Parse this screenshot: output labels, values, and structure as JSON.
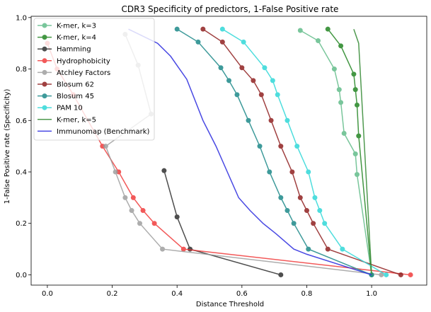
{
  "chart_data": {
    "type": "line",
    "title": "CDR3 Specificity of predictors, 1-False Positive rate",
    "xlabel": "Distance Threshold",
    "ylabel": "1-False Positive rate (Specificity)",
    "xlim": [
      -0.05,
      1.17
    ],
    "ylim": [
      -0.04,
      1.005
    ],
    "xticks": [
      0.0,
      0.2,
      0.4,
      0.6,
      0.8,
      1.0
    ],
    "yticks": [
      0.0,
      0.2,
      0.4,
      0.6,
      0.8,
      1.0
    ],
    "legend_position": "upper-left",
    "series": [
      {
        "name": "K-mer, k=3",
        "color": "#4db37a",
        "alpha": 0.75,
        "marker": true,
        "x": [
          0.78,
          0.835,
          0.885,
          0.9,
          0.905,
          0.915,
          0.95,
          0.955,
          1.0
        ],
        "y": [
          0.95,
          0.91,
          0.8,
          0.72,
          0.67,
          0.55,
          0.47,
          0.39,
          0.0
        ]
      },
      {
        "name": "K-mer, k=4",
        "color": "#2f8c2f",
        "alpha": 0.9,
        "marker": true,
        "x": [
          0.865,
          0.905,
          0.945,
          0.95,
          0.955,
          0.96,
          1.0
        ],
        "y": [
          0.955,
          0.89,
          0.78,
          0.72,
          0.66,
          0.54,
          0.0
        ]
      },
      {
        "name": "Hamming",
        "color": "#222222",
        "alpha": 0.8,
        "marker": true,
        "x": [
          0.36,
          0.4,
          0.44,
          0.72
        ],
        "y": [
          0.405,
          0.225,
          0.1,
          0.0
        ]
      },
      {
        "name": "Hydrophobicity",
        "color": "#f03030",
        "alpha": 0.8,
        "marker": true,
        "x": [
          0.0,
          0.03,
          0.08,
          0.17,
          0.22,
          0.265,
          0.295,
          0.33,
          0.42,
          1.12
        ],
        "y": [
          0.9,
          0.8,
          0.7,
          0.5,
          0.4,
          0.3,
          0.25,
          0.2,
          0.1,
          0.0
        ]
      },
      {
        "name": "Atchley Factors",
        "color": "#999999",
        "alpha": 0.8,
        "marker": true,
        "x": [
          0.24,
          0.28,
          0.32,
          0.18,
          0.21,
          0.24,
          0.26,
          0.285,
          0.355,
          1.03
        ],
        "y": [
          0.935,
          0.815,
          0.625,
          0.5,
          0.4,
          0.3,
          0.25,
          0.2,
          0.1,
          0.0
        ]
      },
      {
        "name": "Blosum 62",
        "color": "#902020",
        "alpha": 0.85,
        "marker": true,
        "x": [
          0.48,
          0.54,
          0.6,
          0.635,
          0.66,
          0.69,
          0.72,
          0.755,
          0.78,
          0.8,
          0.82,
          0.865,
          1.09
        ],
        "y": [
          0.955,
          0.905,
          0.805,
          0.755,
          0.7,
          0.6,
          0.5,
          0.4,
          0.3,
          0.25,
          0.2,
          0.1,
          0.0
        ]
      },
      {
        "name": "Blosum 45",
        "color": "#2a9090",
        "alpha": 0.9,
        "marker": true,
        "x": [
          0.4,
          0.465,
          0.535,
          0.56,
          0.585,
          0.62,
          0.655,
          0.685,
          0.72,
          0.74,
          0.76,
          0.805,
          1.0
        ],
        "y": [
          0.955,
          0.905,
          0.805,
          0.755,
          0.7,
          0.6,
          0.5,
          0.4,
          0.3,
          0.25,
          0.2,
          0.1,
          0.0
        ]
      },
      {
        "name": "PAM 10",
        "color": "#30d8d8",
        "alpha": 0.85,
        "marker": true,
        "x": [
          0.54,
          0.605,
          0.67,
          0.695,
          0.71,
          0.74,
          0.77,
          0.805,
          0.825,
          0.84,
          0.855,
          0.91,
          1.045
        ],
        "y": [
          0.955,
          0.905,
          0.805,
          0.755,
          0.7,
          0.6,
          0.5,
          0.4,
          0.3,
          0.25,
          0.2,
          0.1,
          0.0
        ]
      },
      {
        "name": "K-mer, k=5",
        "color": "#3d8f3d",
        "alpha": 0.9,
        "marker": false,
        "x": [
          0.945,
          0.96,
          1.0
        ],
        "y": [
          0.955,
          0.9,
          0.0
        ]
      },
      {
        "name": "Immunomap (Benchmark)",
        "color": "#3535e0",
        "alpha": 0.9,
        "marker": false,
        "x": [
          0.25,
          0.34,
          0.38,
          0.43,
          0.48,
          0.52,
          0.555,
          0.59,
          0.625,
          0.665,
          0.705,
          0.76,
          0.8,
          1.0
        ],
        "y": [
          0.955,
          0.9,
          0.85,
          0.76,
          0.6,
          0.5,
          0.4,
          0.3,
          0.25,
          0.2,
          0.16,
          0.1,
          0.08,
          0.0
        ]
      }
    ]
  }
}
